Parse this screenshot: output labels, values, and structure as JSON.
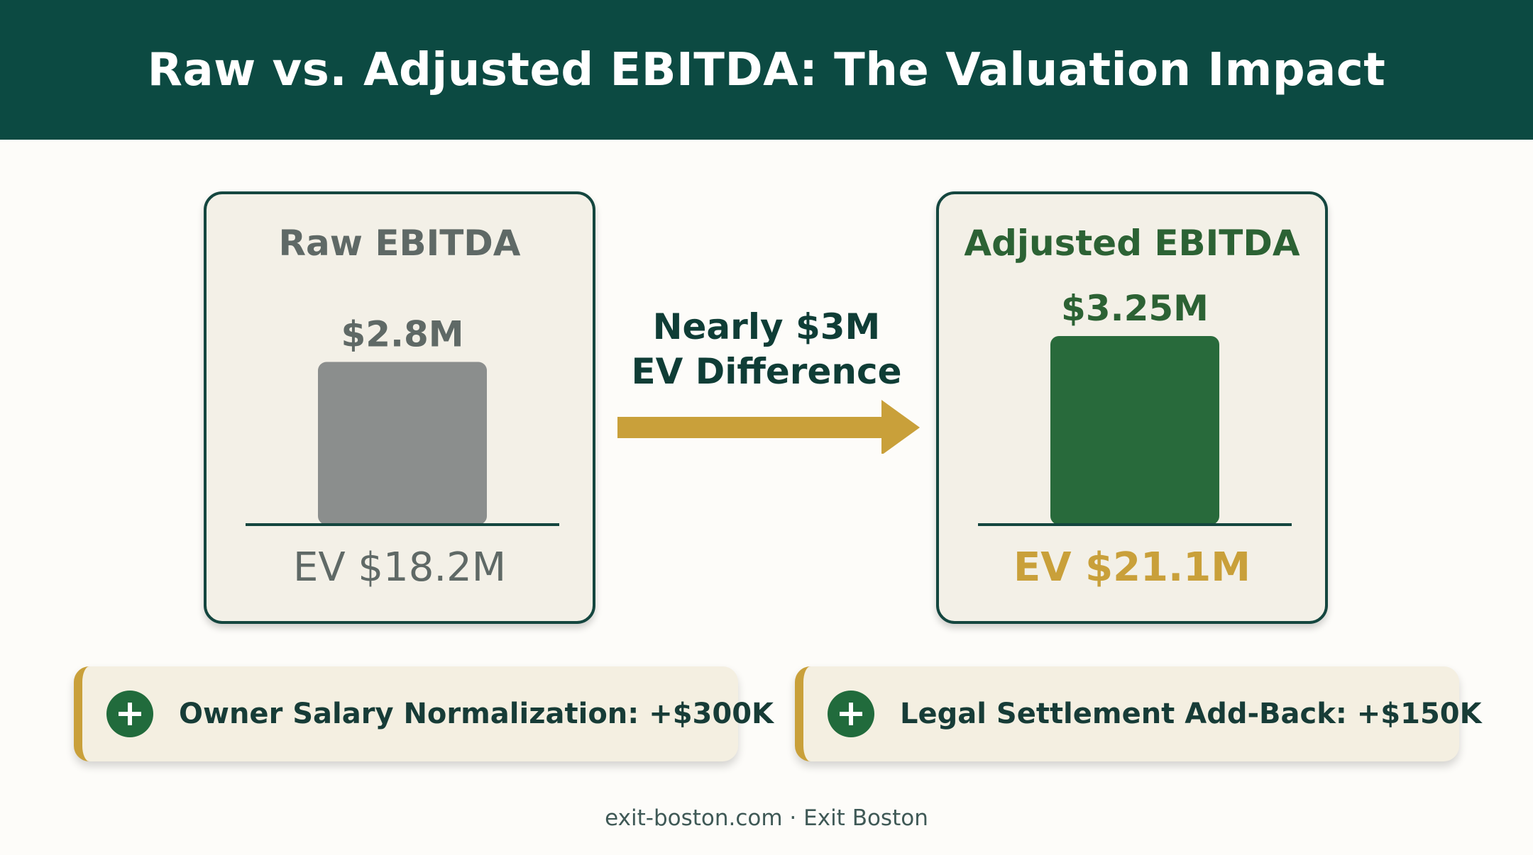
{
  "header": {
    "title": "Raw vs. Adjusted EBITDA: The Valuation Impact"
  },
  "chart_data": {
    "type": "bar",
    "categories": [
      "Raw EBITDA",
      "Adjusted EBITDA"
    ],
    "values": [
      2.8,
      3.25
    ],
    "value_labels": [
      "$2.8M",
      "$3.25M"
    ],
    "ev_labels": [
      "EV $18.2M",
      "EV $21.1M"
    ],
    "colors": [
      "#8b8e8d",
      "#286a3b"
    ],
    "ylim": [
      0,
      3.25
    ]
  },
  "middle": {
    "line1": "Nearly $3M",
    "line2": "EV Difference",
    "arrow_color": "#c9a03a"
  },
  "adjustments": [
    {
      "icon": "plus-circle-icon",
      "label": "Owner Salary Normalization: +$300K"
    },
    {
      "icon": "plus-circle-icon",
      "label": "Legal Settlement Add-Back: +$150K"
    }
  ],
  "footer": {
    "text": "exit-boston.com · Exit Boston"
  }
}
